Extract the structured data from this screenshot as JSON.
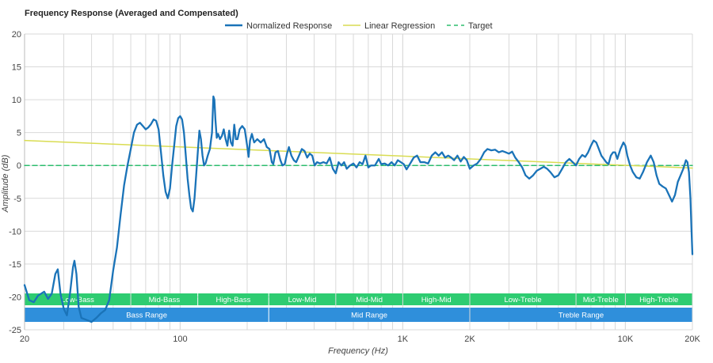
{
  "chart_data": {
    "type": "line",
    "title": "Frequency Response (Averaged and Compensated)",
    "xlabel": "Frequency (Hz)",
    "ylabel": "Amplitude (dB)",
    "xscale": "log",
    "xlim": [
      20,
      20000
    ],
    "ylim": [
      -25,
      20
    ],
    "yticks": [
      20,
      15,
      10,
      5,
      0,
      -5,
      -10,
      -15,
      -20,
      -25
    ],
    "xticks": [
      {
        "value": 20,
        "label": "20"
      },
      {
        "value": 100,
        "label": "100"
      },
      {
        "value": 1000,
        "label": "1K"
      },
      {
        "value": 2000,
        "label": "2K"
      },
      {
        "value": 10000,
        "label": "10K"
      },
      {
        "value": 20000,
        "label": "20K"
      }
    ],
    "legend": [
      {
        "name": "Normalized Response",
        "color": "#1a73b8",
        "style": "solid"
      },
      {
        "name": "Linear Regression",
        "color": "#d9dc52",
        "style": "solid"
      },
      {
        "name": "Target",
        "color": "#2dbd6e",
        "style": "dashed"
      }
    ],
    "series": [
      {
        "name": "Normalized Response",
        "points": [
          [
            20,
            -18.2
          ],
          [
            21,
            -20.5
          ],
          [
            22,
            -20.8
          ],
          [
            23,
            -19.8
          ],
          [
            24.5,
            -19.2
          ],
          [
            25.5,
            -20.3
          ],
          [
            26.5,
            -19.5
          ],
          [
            27.5,
            -16.5
          ],
          [
            28.2,
            -15.8
          ],
          [
            29,
            -19.5
          ],
          [
            30,
            -21.8
          ],
          [
            31,
            -22.8
          ],
          [
            32,
            -19.5
          ],
          [
            33,
            -15.5
          ],
          [
            33.5,
            -14.5
          ],
          [
            34.2,
            -16.5
          ],
          [
            35,
            -21.5
          ],
          [
            36,
            -23.2
          ],
          [
            38,
            -23.5
          ],
          [
            40,
            -23.8
          ],
          [
            42,
            -23.2
          ],
          [
            44,
            -22.5
          ],
          [
            46,
            -22
          ],
          [
            48,
            -20.5
          ],
          [
            50,
            -16
          ],
          [
            52,
            -12.5
          ],
          [
            54,
            -7.5
          ],
          [
            56,
            -3
          ],
          [
            58,
            0
          ],
          [
            60,
            2.5
          ],
          [
            62,
            5
          ],
          [
            64,
            6.2
          ],
          [
            66,
            6.5
          ],
          [
            68,
            6
          ],
          [
            70,
            5.5
          ],
          [
            72,
            5.8
          ],
          [
            74,
            6.3
          ],
          [
            76,
            7
          ],
          [
            78,
            6.8
          ],
          [
            80,
            5.5
          ],
          [
            82,
            2
          ],
          [
            84,
            -1.5
          ],
          [
            86,
            -4
          ],
          [
            88,
            -5
          ],
          [
            90,
            -3.5
          ],
          [
            92,
            0
          ],
          [
            94,
            3
          ],
          [
            96,
            6
          ],
          [
            98,
            7.2
          ],
          [
            100,
            7.5
          ],
          [
            102,
            7
          ],
          [
            104,
            5
          ],
          [
            106,
            1.5
          ],
          [
            108,
            -2
          ],
          [
            110,
            -4.5
          ],
          [
            112,
            -6.5
          ],
          [
            114,
            -7
          ],
          [
            116,
            -5
          ],
          [
            118,
            -1.5
          ],
          [
            120,
            2
          ],
          [
            122,
            5.3
          ],
          [
            124,
            4
          ],
          [
            126,
            1.5
          ],
          [
            128,
            0
          ],
          [
            130,
            0.3
          ],
          [
            133,
            1.5
          ],
          [
            136,
            2.5
          ],
          [
            139,
            5
          ],
          [
            141,
            10.5
          ],
          [
            142.5,
            10
          ],
          [
            144,
            7
          ],
          [
            146,
            4.2
          ],
          [
            148,
            4.8
          ],
          [
            151,
            4
          ],
          [
            154,
            4.5
          ],
          [
            157,
            5.5
          ],
          [
            160,
            4
          ],
          [
            163,
            3
          ],
          [
            166,
            5.3
          ],
          [
            169,
            3.5
          ],
          [
            172,
            3
          ],
          [
            175,
            6.2
          ],
          [
            178,
            4
          ],
          [
            181,
            4
          ],
          [
            185,
            5.5
          ],
          [
            190,
            6
          ],
          [
            195,
            5.5
          ],
          [
            200,
            3
          ],
          [
            203,
            1.3
          ],
          [
            206,
            3.8
          ],
          [
            210,
            4.8
          ],
          [
            215,
            3.5
          ],
          [
            222,
            4
          ],
          [
            230,
            3.5
          ],
          [
            238,
            4
          ],
          [
            245,
            2.8
          ],
          [
            252,
            2.5
          ],
          [
            258,
            0.5
          ],
          [
            262,
            0.2
          ],
          [
            268,
            2
          ],
          [
            275,
            2.2
          ],
          [
            282,
            0.8
          ],
          [
            288,
            0
          ],
          [
            295,
            0.2
          ],
          [
            302,
            1.8
          ],
          [
            308,
            2.8
          ],
          [
            316,
            1.5
          ],
          [
            324,
            0.8
          ],
          [
            332,
            0.5
          ],
          [
            342,
            1.5
          ],
          [
            352,
            2.5
          ],
          [
            362,
            2.2
          ],
          [
            372,
            1.2
          ],
          [
            382,
            1.8
          ],
          [
            392,
            1.5
          ],
          [
            402,
            0
          ],
          [
            412,
            0.5
          ],
          [
            425,
            0.3
          ],
          [
            440,
            0.5
          ],
          [
            455,
            0.3
          ],
          [
            470,
            1.2
          ],
          [
            485,
            -0.5
          ],
          [
            500,
            -1.2
          ],
          [
            515,
            0.5
          ],
          [
            530,
            0
          ],
          [
            545,
            0.5
          ],
          [
            560,
            -0.5
          ],
          [
            580,
            0
          ],
          [
            600,
            0.3
          ],
          [
            620,
            -0.3
          ],
          [
            640,
            0.5
          ],
          [
            660,
            0.2
          ],
          [
            680,
            1.5
          ],
          [
            700,
            -0.3
          ],
          [
            720,
            0
          ],
          [
            750,
            0
          ],
          [
            780,
            1
          ],
          [
            800,
            0.2
          ],
          [
            830,
            0.3
          ],
          [
            860,
            0
          ],
          [
            890,
            0.5
          ],
          [
            920,
            0
          ],
          [
            950,
            0.8
          ],
          [
            980,
            0.5
          ],
          [
            1010,
            0.2
          ],
          [
            1040,
            -0.6
          ],
          [
            1080,
            0.3
          ],
          [
            1120,
            1.2
          ],
          [
            1160,
            1.5
          ],
          [
            1200,
            0.5
          ],
          [
            1250,
            0.5
          ],
          [
            1300,
            0.3
          ],
          [
            1350,
            1.5
          ],
          [
            1400,
            2
          ],
          [
            1450,
            1.5
          ],
          [
            1500,
            2
          ],
          [
            1550,
            1.2
          ],
          [
            1600,
            1.5
          ],
          [
            1650,
            1.2
          ],
          [
            1700,
            0.8
          ],
          [
            1760,
            1.5
          ],
          [
            1820,
            0.6
          ],
          [
            1880,
            1.3
          ],
          [
            1940,
            0.8
          ],
          [
            2000,
            -0.5
          ],
          [
            2080,
            0
          ],
          [
            2160,
            0.3
          ],
          [
            2240,
            1
          ],
          [
            2320,
            2
          ],
          [
            2400,
            2.5
          ],
          [
            2500,
            2.3
          ],
          [
            2600,
            2.4
          ],
          [
            2700,
            2
          ],
          [
            2800,
            2.2
          ],
          [
            2900,
            2
          ],
          [
            3000,
            1.8
          ],
          [
            3100,
            2.1
          ],
          [
            3200,
            1.2
          ],
          [
            3320,
            0.5
          ],
          [
            3440,
            -0.3
          ],
          [
            3560,
            -1.5
          ],
          [
            3700,
            -2
          ],
          [
            3850,
            -1.5
          ],
          [
            4000,
            -0.8
          ],
          [
            4150,
            -0.5
          ],
          [
            4300,
            -0.2
          ],
          [
            4450,
            -0.5
          ],
          [
            4600,
            -1
          ],
          [
            4800,
            -1.8
          ],
          [
            5000,
            -1.5
          ],
          [
            5200,
            -0.5
          ],
          [
            5400,
            0.5
          ],
          [
            5600,
            1
          ],
          [
            5800,
            0.5
          ],
          [
            6000,
            0
          ],
          [
            6200,
            1
          ],
          [
            6400,
            1.6
          ],
          [
            6600,
            1.3
          ],
          [
            6800,
            2
          ],
          [
            7000,
            3
          ],
          [
            7200,
            3.8
          ],
          [
            7400,
            3.5
          ],
          [
            7600,
            2.5
          ],
          [
            7800,
            1.5
          ],
          [
            8000,
            1
          ],
          [
            8200,
            0.5
          ],
          [
            8400,
            0.2
          ],
          [
            8600,
            1.5
          ],
          [
            8800,
            2
          ],
          [
            9000,
            2
          ],
          [
            9200,
            1
          ],
          [
            9500,
            2.5
          ],
          [
            9800,
            3.5
          ],
          [
            10000,
            3
          ],
          [
            10200,
            1.5
          ],
          [
            10500,
            0
          ],
          [
            10800,
            -1
          ],
          [
            11200,
            -1.8
          ],
          [
            11600,
            -2
          ],
          [
            12000,
            -1
          ],
          [
            12500,
            0.5
          ],
          [
            13000,
            1.5
          ],
          [
            13400,
            0.5
          ],
          [
            13800,
            -1.5
          ],
          [
            14200,
            -2.8
          ],
          [
            14700,
            -3.2
          ],
          [
            15200,
            -3.5
          ],
          [
            15700,
            -4.5
          ],
          [
            16200,
            -5.5
          ],
          [
            16700,
            -4.5
          ],
          [
            17200,
            -2.5
          ],
          [
            17700,
            -1.5
          ],
          [
            18200,
            -0.5
          ],
          [
            18700,
            0.8
          ],
          [
            19000,
            0.5
          ],
          [
            19300,
            -1
          ],
          [
            19600,
            -5
          ],
          [
            19800,
            -9.5
          ],
          [
            20000,
            -13.5
          ]
        ]
      },
      {
        "name": "Linear Regression",
        "points": [
          [
            20,
            3.8
          ],
          [
            20000,
            -0.4
          ]
        ]
      },
      {
        "name": "Target",
        "points": [
          [
            20,
            0
          ],
          [
            20000,
            0
          ]
        ]
      }
    ],
    "bands": [
      {
        "label": "Low-Bass",
        "from": 20,
        "to": 60
      },
      {
        "label": "Mid-Bass",
        "from": 60,
        "to": 120
      },
      {
        "label": "High-Bass",
        "from": 120,
        "to": 250
      },
      {
        "label": "Low-Mid",
        "from": 250,
        "to": 500
      },
      {
        "label": "Mid-Mid",
        "from": 500,
        "to": 1000
      },
      {
        "label": "High-Mid",
        "from": 1000,
        "to": 2000
      },
      {
        "label": "Low-Treble",
        "from": 2000,
        "to": 6000
      },
      {
        "label": "Mid-Treble",
        "from": 6000,
        "to": 10000
      },
      {
        "label": "High-Treble",
        "from": 10000,
        "to": 20000
      }
    ],
    "ranges": [
      {
        "label": "Bass Range",
        "from": 20,
        "to": 250
      },
      {
        "label": "Mid Range",
        "from": 250,
        "to": 2000
      },
      {
        "label": "Treble Range",
        "from": 2000,
        "to": 20000
      }
    ],
    "colors": {
      "band": "#2ecc71",
      "range": "#2f8fdb",
      "grid": "#d9d9d9"
    }
  }
}
